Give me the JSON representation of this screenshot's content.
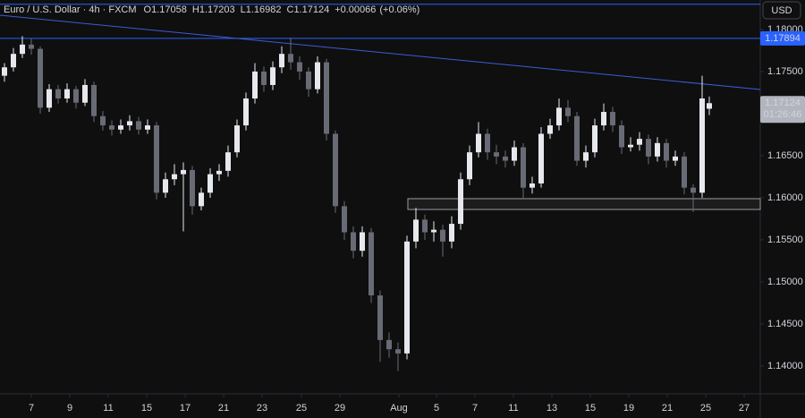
{
  "chart_data": {
    "type": "candlestick",
    "title": "Euro / U.S. Dollar · 4h · FXCM",
    "ohlc_labels": [
      "O",
      "H",
      "L",
      "C"
    ],
    "change": "+0.00066",
    "change_pct": "(+0.06%)",
    "currency": "USD",
    "countdown": "01:26:46",
    "up_color": "#e6e8ee",
    "down_color": "#686b75",
    "xlim": [
      0,
      85
    ],
    "ylim": [
      1.1367,
      1.1835
    ],
    "xticks": [
      {
        "value": 3.5,
        "label": "7"
      },
      {
        "value": 7.8,
        "label": "9"
      },
      {
        "value": 12.1,
        "label": "11"
      },
      {
        "value": 16.4,
        "label": "15"
      },
      {
        "value": 20.7,
        "label": "17"
      },
      {
        "value": 25,
        "label": "21"
      },
      {
        "value": 29.3,
        "label": "23"
      },
      {
        "value": 33.7,
        "label": "25"
      },
      {
        "value": 38,
        "label": "29"
      },
      {
        "value": 44.6,
        "label": "Aug"
      },
      {
        "value": 48.8,
        "label": "5"
      },
      {
        "value": 53.1,
        "label": "7"
      },
      {
        "value": 57.4,
        "label": "11"
      },
      {
        "value": 61.7,
        "label": "13"
      },
      {
        "value": 66,
        "label": "15"
      },
      {
        "value": 70.3,
        "label": "19"
      },
      {
        "value": 74.6,
        "label": "21"
      },
      {
        "value": 78.9,
        "label": "25"
      },
      {
        "value": 83.2,
        "label": "27"
      }
    ],
    "yticks": [
      {
        "value": 1.18,
        "label": "1.18000"
      },
      {
        "value": 1.175,
        "label": "1.17500"
      },
      {
        "value": 1.165,
        "label": "1.16500"
      },
      {
        "value": 1.16,
        "label": "1.16000"
      },
      {
        "value": 1.155,
        "label": "1.15500"
      },
      {
        "value": 1.15,
        "label": "1.15000"
      },
      {
        "value": 1.145,
        "label": "1.14500"
      },
      {
        "value": 1.14,
        "label": "1.14000"
      }
    ],
    "hlines": [
      {
        "value": 1.183,
        "color": "#2962ff"
      },
      {
        "value": 1.17894,
        "color": "#2962ff"
      }
    ],
    "trendline": {
      "x": [
        0,
        85
      ],
      "y": [
        1.18169,
        1.17286
      ],
      "color": "#3d5bd9"
    },
    "zone": {
      "x0": 45.6,
      "x1": 85,
      "top": 1.15989,
      "bottom": 1.15861,
      "color": "#9a9ca3"
    },
    "x": [
      0.5,
      1.5,
      2.5,
      3.5,
      4.5,
      5.5,
      6.5,
      7.5,
      8.5,
      9.5,
      10.5,
      11.5,
      12.5,
      13.5,
      14.5,
      15.5,
      16.5,
      17.5,
      18.5,
      19.5,
      20.5,
      21.5,
      22.5,
      23.5,
      24.5,
      25.5,
      26.5,
      27.5,
      28.5,
      29.5,
      30.5,
      31.5,
      32.5,
      33.5,
      34.5,
      35.5,
      36.5,
      37.5,
      38.5,
      39.5,
      40.5,
      41.5,
      42.5,
      43.5,
      44.5,
      45.5,
      46.5,
      47.5,
      48.5,
      49.5,
      50.5,
      51.5,
      52.5,
      53.5,
      54.5,
      55.5,
      56.5,
      57.5,
      58.5,
      59.5,
      60.5,
      61.5,
      62.5,
      63.5,
      64.5,
      65.5,
      66.5,
      67.5,
      68.5,
      69.5,
      70.5,
      71.5,
      72.5,
      73.5,
      74.5,
      75.5,
      76.5,
      77.5,
      78.5,
      79.3
    ],
    "open": [
      1.1745,
      1.1755,
      1.1771,
      1.1782,
      1.1777,
      1.1707,
      1.1729,
      1.1718,
      1.1729,
      1.1713,
      1.1734,
      1.1697,
      1.1686,
      1.1681,
      1.1686,
      1.1691,
      1.1681,
      1.1686,
      1.1606,
      1.1622,
      1.1628,
      1.1633,
      1.159,
      1.1606,
      1.1628,
      1.1632,
      1.1654,
      1.1686,
      1.1718,
      1.175,
      1.1734,
      1.1755,
      1.1771,
      1.1761,
      1.175,
      1.1729,
      1.1761,
      1.1676,
      1.159,
      1.1559,
      1.1537,
      1.1559,
      1.1484,
      1.1431,
      1.142,
      1.1415,
      1.1548,
      1.1574,
      1.1559,
      1.1562,
      1.1548,
      1.1569,
      1.1622,
      1.1654,
      1.1676,
      1.1654,
      1.1649,
      1.1644,
      1.166,
      1.1612,
      1.1617,
      1.1676,
      1.1686,
      1.1707,
      1.1697,
      1.1644,
      1.1654,
      1.1686,
      1.1702,
      1.1686,
      1.166,
      1.1663,
      1.167,
      1.1649,
      1.1665,
      1.1644,
      1.1649,
      1.1612,
      1.1606,
      1.17058
    ],
    "high": [
      1.176,
      1.1778,
      1.1792,
      1.1789,
      1.178,
      1.1735,
      1.1734,
      1.1736,
      1.1733,
      1.1741,
      1.1738,
      1.1703,
      1.1692,
      1.1693,
      1.1698,
      1.1696,
      1.1693,
      1.169,
      1.163,
      1.164,
      1.1642,
      1.1638,
      1.1612,
      1.1635,
      1.164,
      1.1662,
      1.1693,
      1.1725,
      1.176,
      1.1756,
      1.1762,
      1.178,
      1.179,
      1.1768,
      1.1755,
      1.1768,
      1.1765,
      1.168,
      1.1596,
      1.1566,
      1.1566,
      1.1564,
      1.149,
      1.144,
      1.1428,
      1.1555,
      1.1588,
      1.158,
      1.1572,
      1.1568,
      1.1578,
      1.163,
      1.1662,
      1.169,
      1.1682,
      1.1663,
      1.1656,
      1.1668,
      1.1665,
      1.1625,
      1.1684,
      1.1694,
      1.1718,
      1.1716,
      1.1702,
      1.1662,
      1.1694,
      1.1712,
      1.1708,
      1.1692,
      1.1672,
      1.1678,
      1.1675,
      1.1672,
      1.167,
      1.1656,
      1.1654,
      1.1616,
      1.1745,
      1.17203
    ],
    "low": [
      1.1738,
      1.175,
      1.1766,
      1.177,
      1.17,
      1.1702,
      1.1712,
      1.1713,
      1.1706,
      1.1709,
      1.169,
      1.168,
      1.1674,
      1.1676,
      1.168,
      1.1675,
      1.1676,
      1.1598,
      1.16,
      1.1615,
      1.156,
      1.158,
      1.1585,
      1.16,
      1.162,
      1.1625,
      1.1648,
      1.168,
      1.1712,
      1.1726,
      1.1728,
      1.1748,
      1.1752,
      1.174,
      1.172,
      1.1724,
      1.1668,
      1.1582,
      1.155,
      1.1528,
      1.153,
      1.1475,
      1.1405,
      1.141,
      1.1394,
      1.1408,
      1.154,
      1.155,
      1.1548,
      1.153,
      1.154,
      1.1562,
      1.1615,
      1.1648,
      1.1645,
      1.164,
      1.1636,
      1.1638,
      1.16,
      1.1605,
      1.1612,
      1.167,
      1.168,
      1.169,
      1.1638,
      1.1636,
      1.1648,
      1.168,
      1.1678,
      1.1652,
      1.1655,
      1.1656,
      1.164,
      1.1643,
      1.1636,
      1.1638,
      1.1604,
      1.1583,
      1.16,
      1.16982
    ],
    "close": [
      1.1755,
      1.1771,
      1.1782,
      1.1777,
      1.1707,
      1.1729,
      1.1718,
      1.1729,
      1.1713,
      1.1734,
      1.1697,
      1.1686,
      1.1681,
      1.1686,
      1.1691,
      1.1681,
      1.1686,
      1.1606,
      1.1622,
      1.1628,
      1.1633,
      1.159,
      1.1606,
      1.1628,
      1.1632,
      1.1654,
      1.1686,
      1.1718,
      1.175,
      1.1734,
      1.1755,
      1.1771,
      1.1761,
      1.175,
      1.1729,
      1.1761,
      1.1676,
      1.159,
      1.1559,
      1.1537,
      1.1559,
      1.1484,
      1.1431,
      1.142,
      1.1415,
      1.1548,
      1.1574,
      1.1559,
      1.1562,
      1.1548,
      1.1569,
      1.1622,
      1.1654,
      1.1676,
      1.1654,
      1.1649,
      1.1644,
      1.166,
      1.1612,
      1.1617,
      1.1676,
      1.1686,
      1.1707,
      1.1697,
      1.1644,
      1.1654,
      1.1686,
      1.1702,
      1.1686,
      1.166,
      1.1663,
      1.167,
      1.1649,
      1.1665,
      1.1644,
      1.1649,
      1.1612,
      1.1606,
      1.1718,
      1.17124
    ]
  }
}
